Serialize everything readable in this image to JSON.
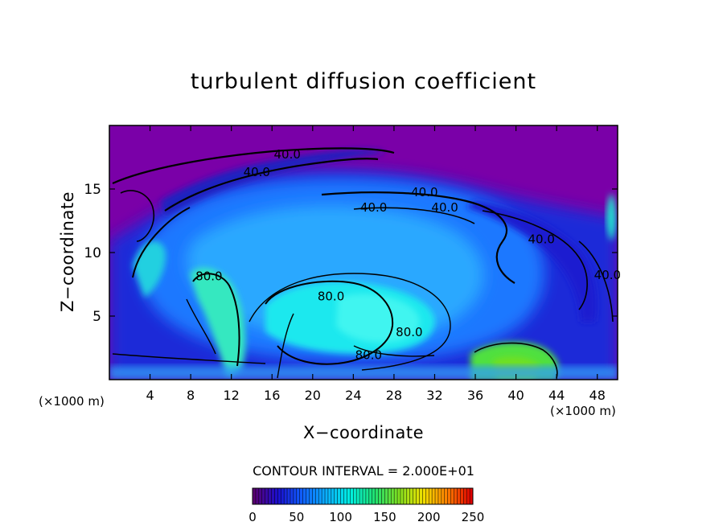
{
  "chart_data": {
    "type": "heatmap",
    "title": "turbulent diffusion coefficient",
    "xlabel": "X−coordinate",
    "ylabel": "Z−coordinate",
    "x_unit": "(×1000 m)",
    "z_unit": "(×1000 m)",
    "xlim": [
      0,
      50
    ],
    "ylim": [
      0,
      20
    ],
    "x_ticks": [
      4,
      8,
      12,
      16,
      20,
      24,
      28,
      32,
      36,
      40,
      44,
      48
    ],
    "y_ticks": [
      5,
      10,
      15
    ],
    "contour_interval_text": "CONTOUR INTERVAL = 2.000E+01",
    "colorbar": {
      "min": 0,
      "max": 250,
      "ticks": [
        0,
        50,
        100,
        150,
        200,
        250
      ],
      "colors": [
        "#5a0073",
        "#1a0fd0",
        "#1060ff",
        "#0ab0ff",
        "#00f0e0",
        "#20e070",
        "#80e020",
        "#f0e000",
        "#ff8000",
        "#e00000"
      ]
    },
    "contour_labels": [
      {
        "text": "40.0",
        "x": 17.5,
        "y": 17.8
      },
      {
        "text": "40.0",
        "x": 14.5,
        "y": 16.4
      },
      {
        "text": "40.0",
        "x": 31.0,
        "y": 14.8
      },
      {
        "text": "40.0",
        "x": 33.0,
        "y": 13.6
      },
      {
        "text": "40.0",
        "x": 26.0,
        "y": 13.6
      },
      {
        "text": "40.0",
        "x": 42.5,
        "y": 11.1
      },
      {
        "text": "40.0",
        "x": 49.0,
        "y": 8.3
      },
      {
        "text": "80.0",
        "x": 9.8,
        "y": 8.2
      },
      {
        "text": "80.0",
        "x": 21.8,
        "y": 6.6
      },
      {
        "text": "80.0",
        "x": 29.5,
        "y": 3.8
      },
      {
        "text": "80.0",
        "x": 25.5,
        "y": 2.0
      }
    ]
  }
}
